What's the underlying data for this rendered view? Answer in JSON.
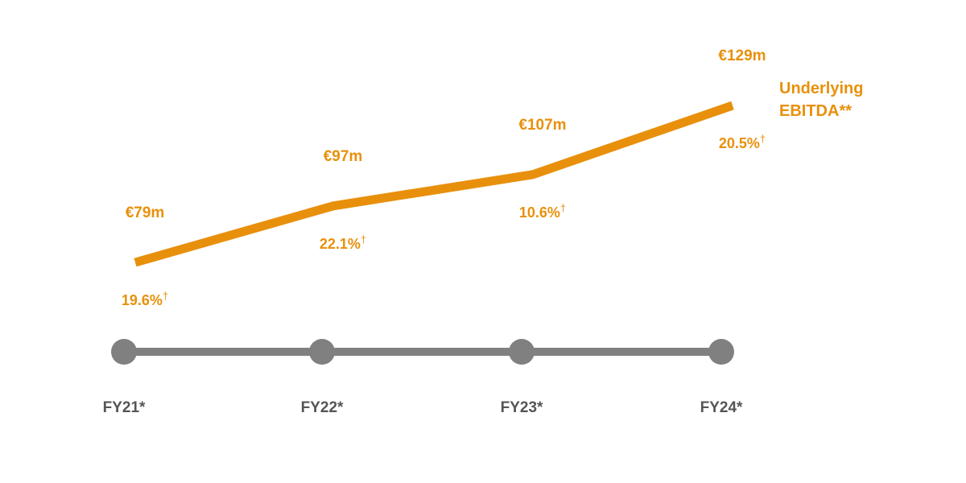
{
  "chart_data": {
    "type": "line",
    "categories": [
      "FY21*",
      "FY22*",
      "FY23*",
      "FY24*"
    ],
    "series": [
      {
        "name": "Underlying EBITDA**",
        "label_lines": [
          "Underlying",
          "EBITDA**"
        ],
        "values": [
          79,
          97,
          107,
          129
        ],
        "value_labels": [
          "€79m",
          "€97m",
          "€107m",
          "€129m"
        ],
        "growth_labels": [
          "19.6%",
          "22.1%",
          "10.6%",
          "20.5%"
        ],
        "growth_marker": "†"
      }
    ],
    "unit": "€m",
    "colors": {
      "line": "#e8900c",
      "labels": "#e8900c",
      "axis": "#808080",
      "ticks": "#555555"
    }
  }
}
